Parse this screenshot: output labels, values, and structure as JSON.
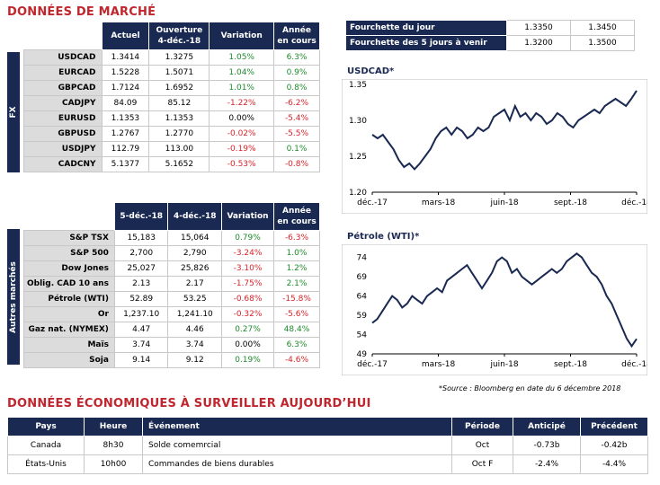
{
  "market_title": "DONNÉES DE MARCHÉ",
  "fx": {
    "side_label": "FX",
    "headers": [
      "Actuel",
      "Ouverture 4-déc.-18",
      "Variation",
      "Année en cours"
    ],
    "rows": [
      {
        "name": "USDCAD",
        "actuel": "1.3414",
        "ouverture": "1.3275",
        "variation": "1.05%",
        "annee": "6.3%"
      },
      {
        "name": "EURCAD",
        "actuel": "1.5228",
        "ouverture": "1.5071",
        "variation": "1.04%",
        "annee": "0.9%"
      },
      {
        "name": "GBPCAD",
        "actuel": "1.7124",
        "ouverture": "1.6952",
        "variation": "1.01%",
        "annee": "0.8%"
      },
      {
        "name": "CADJPY",
        "actuel": "84.09",
        "ouverture": "85.12",
        "variation": "-1.22%",
        "annee": "-6.2%"
      },
      {
        "name": "EURUSD",
        "actuel": "1.1353",
        "ouverture": "1.1353",
        "variation": "0.00%",
        "annee": "-5.4%"
      },
      {
        "name": "GBPUSD",
        "actuel": "1.2767",
        "ouverture": "1.2770",
        "variation": "-0.02%",
        "annee": "-5.5%"
      },
      {
        "name": "USDJPY",
        "actuel": "112.79",
        "ouverture": "113.00",
        "variation": "-0.19%",
        "annee": "0.1%"
      },
      {
        "name": "CADCNY",
        "actuel": "5.1377",
        "ouverture": "5.1652",
        "variation": "-0.53%",
        "annee": "-0.8%"
      }
    ]
  },
  "other": {
    "side_label": "Autres marchés",
    "headers": [
      "5-déc.-18",
      "4-déc.-18",
      "Variation",
      "Année en cours"
    ],
    "rows": [
      {
        "name": "S&P TSX",
        "c1": "15,183",
        "c2": "15,064",
        "variation": "0.79%",
        "annee": "-6.3%"
      },
      {
        "name": "S&P 500",
        "c1": "2,700",
        "c2": "2,790",
        "variation": "-3.24%",
        "annee": "1.0%"
      },
      {
        "name": "Dow Jones",
        "c1": "25,027",
        "c2": "25,826",
        "variation": "-3.10%",
        "annee": "1.2%"
      },
      {
        "name": "Oblig. CAD 10 ans",
        "c1": "2.13",
        "c2": "2.17",
        "variation": "-1.75%",
        "annee": "2.1%"
      },
      {
        "name": "Pétrole (WTI)",
        "c1": "52.89",
        "c2": "53.25",
        "variation": "-0.68%",
        "annee": "-15.8%"
      },
      {
        "name": "Or",
        "c1": "1,237.10",
        "c2": "1,241.10",
        "variation": "-0.32%",
        "annee": "-5.6%"
      },
      {
        "name": "Gaz nat. (NYMEX)",
        "c1": "4.47",
        "c2": "4.46",
        "variation": "0.27%",
        "annee": "48.4%"
      },
      {
        "name": "Maïs",
        "c1": "3.74",
        "c2": "3.74",
        "variation": "0.00%",
        "annee": "6.3%"
      },
      {
        "name": "Soja",
        "c1": "9.14",
        "c2": "9.12",
        "variation": "0.19%",
        "annee": "-4.6%"
      }
    ]
  },
  "ranges": [
    {
      "label": "Fourchette du jour",
      "low": "1.3350",
      "high": "1.3450"
    },
    {
      "label": "Fourchette des 5 jours à venir",
      "low": "1.3200",
      "high": "1.3500"
    }
  ],
  "chart_data": [
    {
      "type": "line",
      "title": "USDCAD*",
      "x_ticks": [
        "déc.-17",
        "mars-18",
        "juin-18",
        "sept.-18",
        "déc.-18"
      ],
      "y_ticks": [
        "1.20",
        "1.25",
        "1.30",
        "1.35"
      ],
      "ylim": [
        1.2,
        1.35
      ],
      "color": "#1a2952",
      "series": [
        {
          "values": [
            1.28,
            1.275,
            1.28,
            1.27,
            1.26,
            1.245,
            1.235,
            1.24,
            1.232,
            1.24,
            1.25,
            1.26,
            1.275,
            1.285,
            1.29,
            1.28,
            1.29,
            1.285,
            1.275,
            1.28,
            1.29,
            1.285,
            1.29,
            1.305,
            1.31,
            1.315,
            1.3,
            1.32,
            1.305,
            1.31,
            1.3,
            1.31,
            1.305,
            1.295,
            1.3,
            1.31,
            1.305,
            1.295,
            1.29,
            1.3,
            1.305,
            1.31,
            1.315,
            1.31,
            1.32,
            1.325,
            1.33,
            1.325,
            1.32,
            1.33,
            1.3414
          ]
        }
      ]
    },
    {
      "type": "line",
      "title": "Pétrole (WTI)*",
      "x_ticks": [
        "déc.-17",
        "mars-18",
        "juin-18",
        "sept.-18",
        "déc.-18"
      ],
      "y_ticks": [
        "49",
        "54",
        "59",
        "64",
        "69",
        "74"
      ],
      "ylim": [
        49,
        76
      ],
      "color": "#1a2952",
      "series": [
        {
          "values": [
            57,
            58,
            60,
            62,
            64,
            63,
            61,
            62,
            64,
            63,
            62,
            64,
            65,
            66,
            65,
            68,
            69,
            70,
            71,
            72,
            70,
            68,
            66,
            68,
            70,
            73,
            74,
            73,
            70,
            71,
            69,
            68,
            67,
            68,
            69,
            70,
            71,
            70,
            71,
            73,
            74,
            75,
            74,
            72,
            70,
            69,
            67,
            64,
            62,
            59,
            56,
            53,
            51,
            52.89
          ]
        }
      ]
    }
  ],
  "source_note": "*Source : Bloomberg en date du  6 décembre 2018",
  "econ_title": "DONNÉES ÉCONOMIQUES À SURVEILLER AUJOURD’HUI",
  "econ": {
    "headers": [
      "Pays",
      "Heure",
      "Événement",
      "Période",
      "Anticipé",
      "Précédent"
    ],
    "rows": [
      {
        "pays": "Canada",
        "heure": "8h30",
        "evenement": "Solde comemrcial",
        "periode": "Oct",
        "anticipe": "-0.73b",
        "precedent": "-0.42b"
      },
      {
        "pays": "États-Unis",
        "heure": "10h00",
        "evenement": "Commandes de biens durables",
        "periode": "Oct F",
        "anticipe": "-2.4%",
        "precedent": "-4.4%"
      }
    ]
  }
}
